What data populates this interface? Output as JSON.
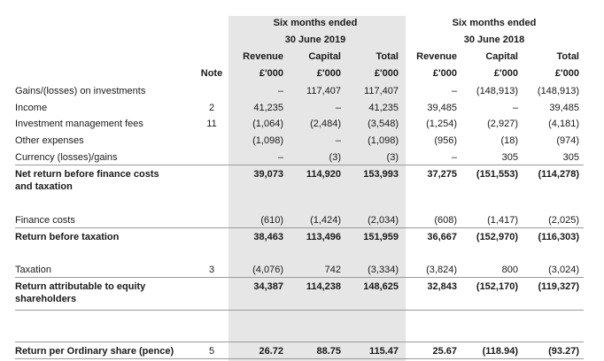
{
  "header": {
    "period1": [
      "Six months ended",
      "30 June 2019"
    ],
    "period2": [
      "Six months ended",
      "30 June 2018"
    ],
    "cols": [
      [
        "Revenue",
        "£'000"
      ],
      [
        "Capital",
        "£'000"
      ],
      [
        "Total",
        "£'000"
      ],
      [
        "Revenue",
        "£'000"
      ],
      [
        "Capital",
        "£'000"
      ],
      [
        "Total",
        "£'000"
      ]
    ],
    "note": "Note"
  },
  "rows": [
    {
      "label": [
        "Gains/(losses) on investments"
      ],
      "note": "",
      "values": [
        "–",
        "117,407",
        "117,407",
        "–",
        "(148,913)",
        "(148,913)"
      ],
      "bold": false
    },
    {
      "label": [
        "Income"
      ],
      "note": "2",
      "values": [
        "41,235",
        "–",
        "41,235",
        "39,485",
        "–",
        "39,485"
      ],
      "bold": false
    },
    {
      "label": [
        "Investment management fees"
      ],
      "note": "11",
      "values": [
        "(1,064)",
        "(2,484)",
        "(3,548)",
        "(1,254)",
        "(2,927)",
        "(4,181)"
      ],
      "bold": false
    },
    {
      "label": [
        "Other expenses"
      ],
      "note": "",
      "values": [
        "(1,098)",
        "–",
        "(1,098)",
        "(956)",
        "(18)",
        "(974)"
      ],
      "bold": false
    },
    {
      "label": [
        "Currency (losses)/gains"
      ],
      "note": "",
      "values": [
        "–",
        "(3)",
        "(3)",
        "–",
        "305",
        "305"
      ],
      "bold": false
    },
    {
      "label": [
        "Net return before finance costs",
        "and taxation"
      ],
      "note": "",
      "values": [
        "39,073",
        "114,920",
        "153,993",
        "37,275",
        "(151,553)",
        "(114,278)"
      ],
      "bold": true
    },
    {
      "label": [
        "Finance costs"
      ],
      "note": "",
      "values": [
        "(610)",
        "(1,424)",
        "(2,034)",
        "(608)",
        "(1,417)",
        "(2,025)"
      ],
      "bold": false
    },
    {
      "label": [
        "Return before taxation"
      ],
      "note": "",
      "values": [
        "38,463",
        "113,496",
        "151,959",
        "36,667",
        "(152,970)",
        "(116,303)"
      ],
      "bold": true
    },
    {
      "label": [
        "Taxation"
      ],
      "note": "3",
      "values": [
        "(4,076)",
        "742",
        "(3,334)",
        "(3,824)",
        "800",
        "(3,024)"
      ],
      "bold": false
    },
    {
      "label": [
        "Return attributable to equity",
        "shareholders"
      ],
      "note": "",
      "values": [
        "34,387",
        "114,238",
        "148,625",
        "32,843",
        "(152,170)",
        "(119,327)"
      ],
      "bold": true
    },
    {
      "label": [
        "Return per Ordinary share (pence)"
      ],
      "note": "5",
      "values": [
        "26.72",
        "88.75",
        "115.47",
        "25.67",
        "(118.94)",
        "(93.27)"
      ],
      "bold": true
    }
  ]
}
